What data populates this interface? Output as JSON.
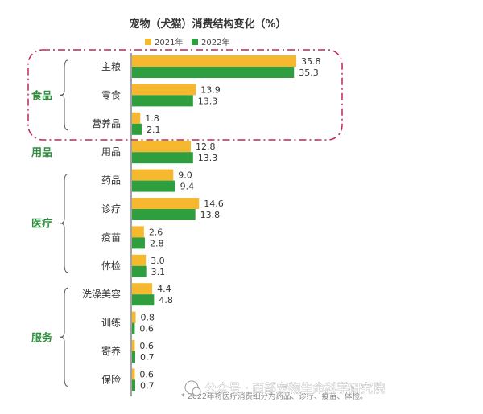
{
  "chart_data": {
    "type": "bar",
    "title": "宠物（犬猫）消费结构变化（%）",
    "series": [
      {
        "name": "2021年",
        "color": "#F5B82E",
        "values": [
          35.8,
          13.9,
          1.8,
          12.8,
          9.0,
          14.6,
          2.6,
          3.0,
          4.4,
          0.8,
          0.6,
          0.6
        ]
      },
      {
        "name": "2022年",
        "color": "#2E9E3E",
        "values": [
          35.3,
          13.3,
          2.1,
          13.3,
          9.4,
          13.8,
          2.8,
          3.1,
          4.8,
          0.6,
          0.7,
          0.7
        ]
      }
    ],
    "value_labels": {
      "2021年": [
        "35.8",
        "13.9",
        "1.8",
        "12.8",
        "9.0",
        "14.6",
        "2.6",
        "3.0",
        "4.4",
        "0.8",
        "0.6",
        "0.6"
      ],
      "2022年": [
        "35.3",
        "13.3",
        "2.1",
        "13.3",
        "9.4",
        "13.8",
        "2.8",
        "3.1",
        "4.8",
        "0.6",
        "0.7",
        "0.7"
      ]
    },
    "categories": [
      "主粮",
      "零食",
      "营养品",
      "用品",
      "药品",
      "诊疗",
      "疫苗",
      "体检",
      "洗澡美容",
      "训练",
      "寄养",
      "保险"
    ],
    "groups": [
      {
        "name": "食品",
        "members": [
          "主粮",
          "零食",
          "营养品"
        ]
      },
      {
        "name": "用品",
        "members": [
          "用品"
        ]
      },
      {
        "name": "医疗",
        "members": [
          "药品",
          "诊疗",
          "疫苗",
          "体检"
        ]
      },
      {
        "name": "服务",
        "members": [
          "洗澡美容",
          "训练",
          "寄养",
          "保险"
        ]
      }
    ],
    "legend_position": "top-right",
    "highlight_group": "食品",
    "footnote": "* 2022年将医疗消费细分为药品、诊疗、疫苗、体检。",
    "watermark": "公众号 · 西部宠物生命科学研究院",
    "xlim": [
      0,
      36
    ],
    "grid": false
  }
}
